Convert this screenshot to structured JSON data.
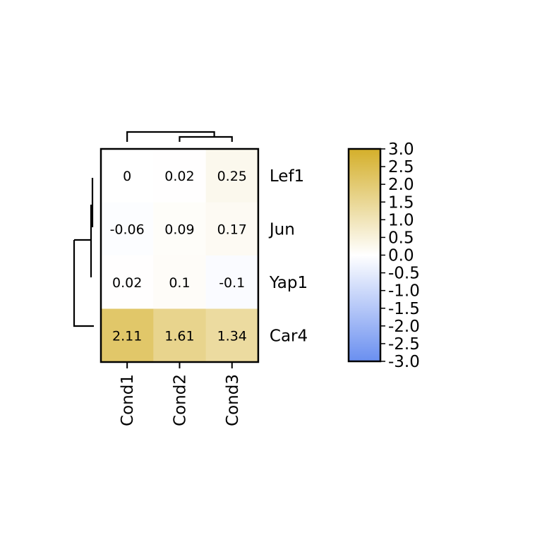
{
  "chart_data": {
    "type": "heatmap",
    "columns": [
      "Cond1",
      "Cond2",
      "Cond3"
    ],
    "rows": [
      "Lef1",
      "Jun",
      "Yap1",
      "Car4"
    ],
    "values": [
      [
        0,
        0.02,
        0.25
      ],
      [
        -0.06,
        0.09,
        0.17
      ],
      [
        0.02,
        0.1,
        -0.1
      ],
      [
        2.11,
        1.61,
        1.34
      ]
    ],
    "cell_labels": [
      [
        "0",
        "0.02",
        "0.25"
      ],
      [
        "-0.06",
        "0.09",
        "0.17"
      ],
      [
        "0.02",
        "0.1",
        "-0.1"
      ],
      [
        "2.11",
        "1.61",
        "1.34"
      ]
    ],
    "colorbar": {
      "range": [
        -3.0,
        3.0
      ],
      "ticks": [
        "3.0",
        "2.5",
        "2.0",
        "1.5",
        "1.0",
        "0.5",
        "0.0",
        "-0.5",
        "-1.0",
        "-1.5",
        "-2.0",
        "-2.5",
        "-3.0"
      ],
      "colors": {
        "high": "#d4af2a",
        "mid": "#ffffff",
        "low": "#6a8ff0"
      },
      "placement": "right"
    },
    "dendrograms": {
      "columns": "top",
      "rows": "left"
    }
  }
}
